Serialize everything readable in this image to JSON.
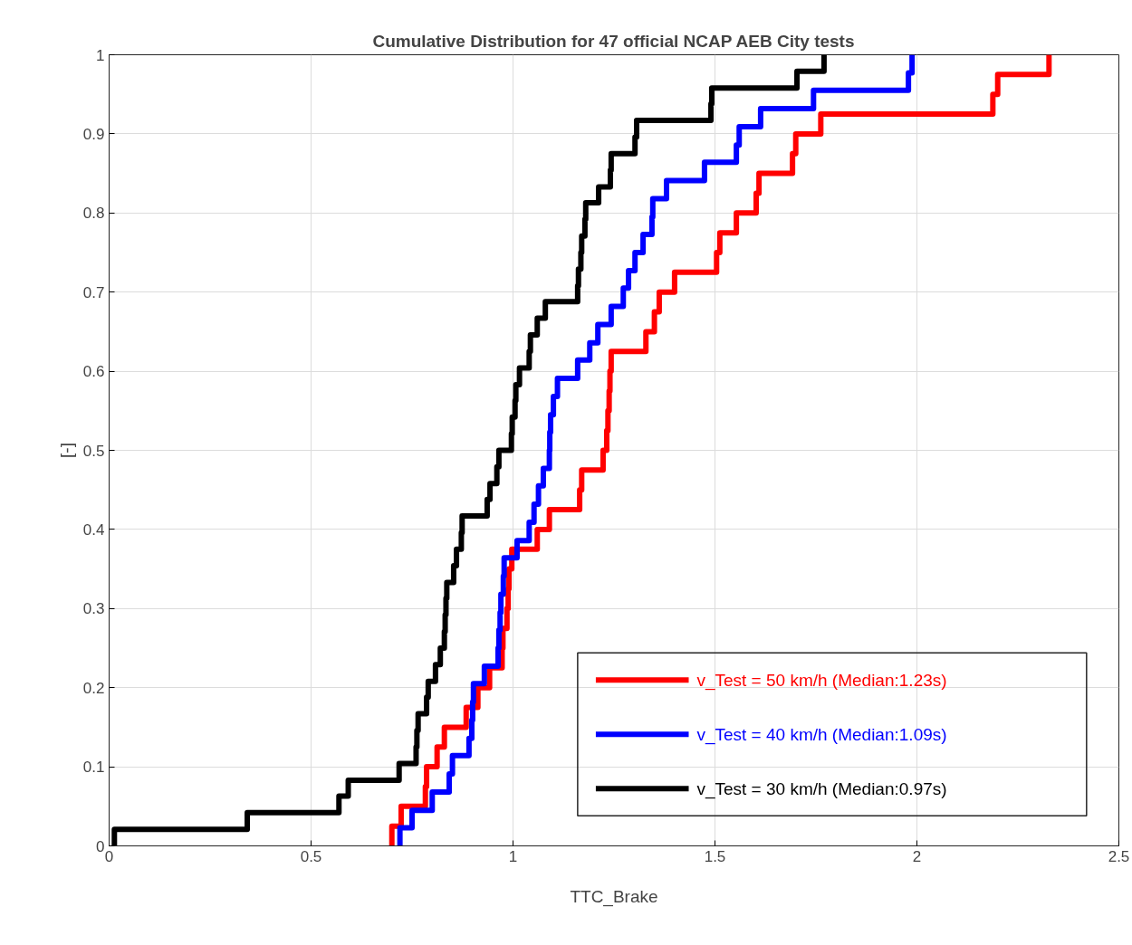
{
  "chart_data": {
    "type": "step",
    "title": "Cumulative Distribution for 47 official NCAP AEB City tests",
    "xlabel": "TTC_Brake",
    "ylabel": "[-]",
    "xlim": [
      0,
      2.5
    ],
    "ylim": [
      0,
      1
    ],
    "xticks": [
      0,
      0.5,
      1,
      1.5,
      2,
      2.5
    ],
    "yticks": [
      0,
      0.1,
      0.2,
      0.3,
      0.4,
      0.5,
      0.6,
      0.7,
      0.8,
      0.9,
      1
    ],
    "grid": true,
    "legend": "bottom right",
    "line_style": "solid",
    "series": [
      {
        "name": "v_Test = 50 km/h (Median:1.23s)",
        "color": "#ff0000",
        "x": [
          0.7,
          0.7,
          0.723,
          0.783,
          0.786,
          0.812,
          0.83,
          0.884,
          0.913,
          0.942,
          0.973,
          0.975,
          0.985,
          0.988,
          0.99,
          0.997,
          1.06,
          1.09,
          1.165,
          1.17,
          1.223,
          1.232,
          1.235,
          1.238,
          1.24,
          1.243,
          1.329,
          1.35,
          1.362,
          1.4,
          1.504,
          1.512,
          1.553,
          1.602,
          1.609,
          1.692,
          1.7,
          1.762,
          2.188,
          2.2,
          2.327
        ],
        "values": [
          0,
          0.025,
          0.05,
          0.075,
          0.1,
          0.125,
          0.15,
          0.175,
          0.2,
          0.225,
          0.25,
          0.275,
          0.3,
          0.325,
          0.35,
          0.375,
          0.4,
          0.425,
          0.45,
          0.475,
          0.5,
          0.525,
          0.55,
          0.575,
          0.6,
          0.625,
          0.65,
          0.675,
          0.7,
          0.725,
          0.75,
          0.775,
          0.8,
          0.825,
          0.85,
          0.875,
          0.9,
          0.925,
          0.95,
          0.975,
          1.0
        ]
      },
      {
        "name": "v_Test = 40 km/h (Median:1.09s)",
        "color": "#0000ff",
        "x": [
          0.72,
          0.72,
          0.75,
          0.8,
          0.842,
          0.85,
          0.891,
          0.898,
          0.9,
          0.902,
          0.929,
          0.963,
          0.965,
          0.968,
          0.97,
          0.976,
          0.978,
          1.01,
          1.04,
          1.052,
          1.063,
          1.075,
          1.09,
          1.091,
          1.093,
          1.1,
          1.11,
          1.16,
          1.19,
          1.21,
          1.243,
          1.273,
          1.286,
          1.302,
          1.322,
          1.344,
          1.346,
          1.38,
          1.474,
          1.553,
          1.56,
          1.613,
          1.744,
          1.979,
          1.988
        ],
        "values": [
          0,
          0.023,
          0.045,
          0.068,
          0.091,
          0.114,
          0.136,
          0.159,
          0.182,
          0.205,
          0.227,
          0.25,
          0.273,
          0.295,
          0.318,
          0.341,
          0.364,
          0.386,
          0.409,
          0.432,
          0.455,
          0.477,
          0.5,
          0.523,
          0.545,
          0.568,
          0.591,
          0.614,
          0.636,
          0.659,
          0.682,
          0.705,
          0.727,
          0.75,
          0.773,
          0.795,
          0.818,
          0.841,
          0.864,
          0.886,
          0.909,
          0.932,
          0.955,
          0.977,
          1.0
        ]
      },
      {
        "name": "v_Test = 30 km/h (Median:0.97s)",
        "color": "#000000",
        "x": [
          0.013,
          0.013,
          0.342,
          0.569,
          0.592,
          0.718,
          0.76,
          0.762,
          0.765,
          0.786,
          0.79,
          0.808,
          0.82,
          0.83,
          0.832,
          0.834,
          0.836,
          0.853,
          0.86,
          0.872,
          0.874,
          0.936,
          0.943,
          0.96,
          0.965,
          0.996,
          0.998,
          1.005,
          1.007,
          1.016,
          1.04,
          1.043,
          1.06,
          1.08,
          1.16,
          1.162,
          1.168,
          1.17,
          1.178,
          1.18,
          1.212,
          1.241,
          1.243,
          1.302,
          1.306,
          1.49,
          1.492,
          1.703,
          1.77
        ],
        "values": [
          0,
          0.021,
          0.042,
          0.063,
          0.083,
          0.104,
          0.125,
          0.146,
          0.167,
          0.188,
          0.208,
          0.229,
          0.25,
          0.271,
          0.292,
          0.313,
          0.333,
          0.354,
          0.375,
          0.396,
          0.417,
          0.438,
          0.458,
          0.479,
          0.5,
          0.521,
          0.542,
          0.563,
          0.583,
          0.604,
          0.625,
          0.646,
          0.667,
          0.688,
          0.708,
          0.729,
          0.75,
          0.771,
          0.792,
          0.813,
          0.833,
          0.854,
          0.875,
          0.896,
          0.917,
          0.938,
          0.958,
          0.979,
          1.0
        ]
      }
    ]
  }
}
